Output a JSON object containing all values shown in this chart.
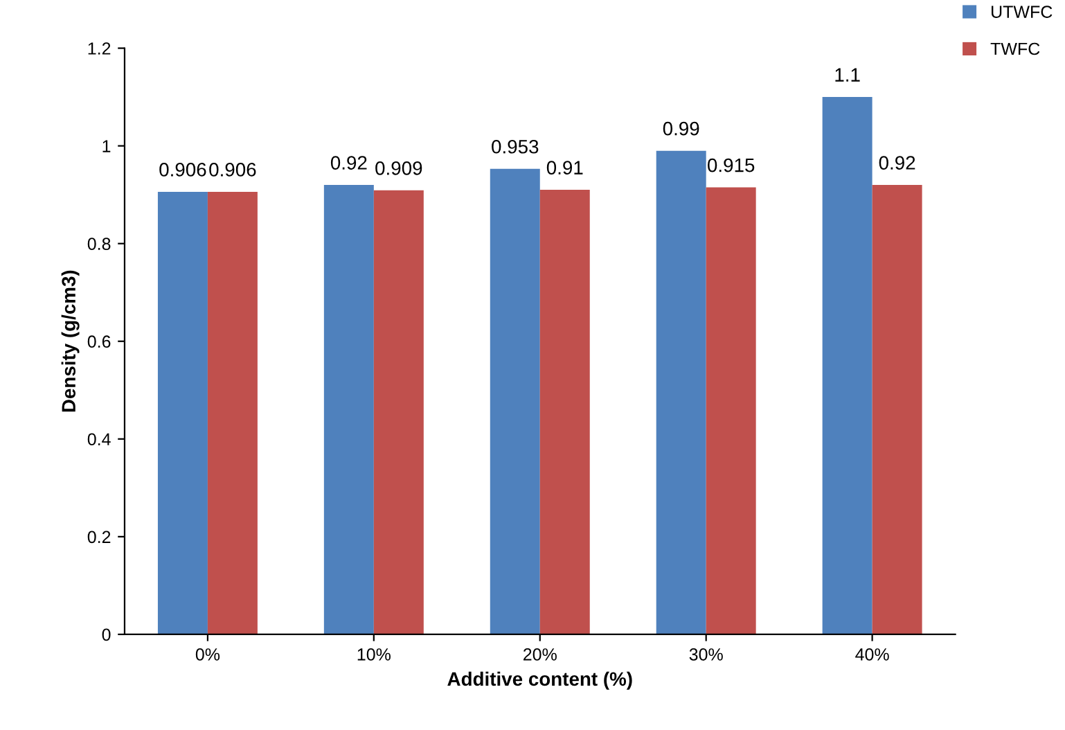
{
  "chart_data": {
    "type": "bar",
    "xlabel": "Additive content (%)",
    "ylabel": "Density (g/cm3)",
    "categories": [
      "0%",
      "10%",
      "20%",
      "30%",
      "40%"
    ],
    "series": [
      {
        "name": "UTWFC",
        "color": "#4f81bd",
        "values": [
          0.906,
          0.92,
          0.953,
          0.99,
          1.1
        ]
      },
      {
        "name": "TWFC",
        "color": "#c0504d",
        "values": [
          0.906,
          0.909,
          0.91,
          0.915,
          0.92
        ]
      }
    ],
    "ylim": [
      0,
      1.2
    ],
    "yticks": [
      0,
      0.2,
      0.4,
      0.6,
      0.8,
      1,
      1.2
    ],
    "grid": false,
    "legend": "top right",
    "data_labels": true
  }
}
